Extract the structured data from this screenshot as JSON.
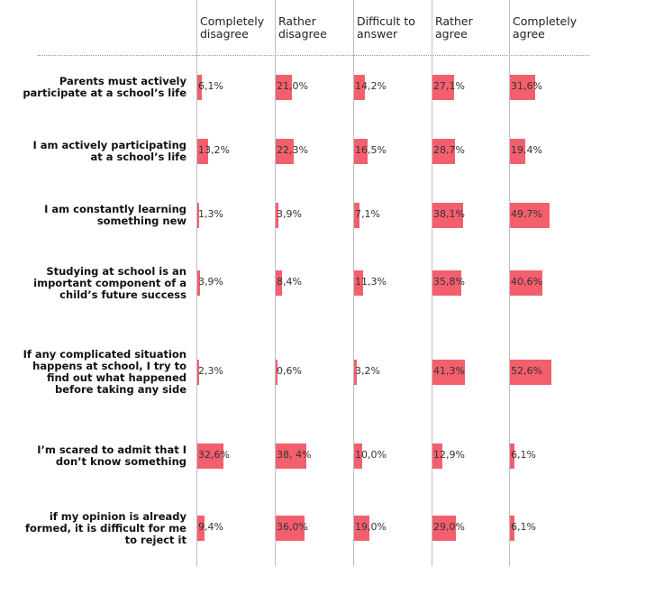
{
  "chart_data": {
    "type": "bar",
    "columns": [
      "Completely disagree",
      "Rather disagree",
      "Difficult to answer",
      "Rather agree",
      "Completely agree"
    ],
    "column_lines": [
      [
        "Completely",
        "disagree"
      ],
      [
        "Rather",
        "disagree"
      ],
      [
        "Difficult to",
        "answer"
      ],
      [
        "Rather",
        "agree"
      ],
      [
        "Completely",
        "agree"
      ]
    ],
    "rows": [
      {
        "label_lines": [
          "Parents must actively",
          "participate at a school’s life"
        ],
        "values": [
          6.1,
          21.0,
          14.2,
          27.1,
          31.6
        ],
        "value_labels": [
          "6,1%",
          "21,0%",
          "14,2%",
          "27,1%",
          "31,6%"
        ]
      },
      {
        "label_lines": [
          "I am actively participating",
          "at a school’s life"
        ],
        "values": [
          13.2,
          22.3,
          16.5,
          28.7,
          19.4
        ],
        "value_labels": [
          "13,2%",
          "22,3%",
          "16,5%",
          "28,7%",
          "19,4%"
        ]
      },
      {
        "label_lines": [
          "I am constantly learning",
          "something new"
        ],
        "values": [
          1.3,
          3.9,
          7.1,
          38.1,
          49.7
        ],
        "value_labels": [
          "1,3%",
          "3,9%",
          "7,1%",
          "38,1%",
          "49,7%"
        ]
      },
      {
        "label_lines": [
          "Studying at school is an",
          "important component of a",
          "child’s future success"
        ],
        "values": [
          3.9,
          8.4,
          11.3,
          35.8,
          40.6
        ],
        "value_labels": [
          "3,9%",
          "8,4%",
          "11,3%",
          "35,8%",
          "40,6%"
        ]
      },
      {
        "label_lines": [
          "If any complicated situation",
          "happens at school, I try to",
          "find out what happened",
          "before taking any side"
        ],
        "values": [
          2.3,
          0.6,
          3.2,
          41.3,
          52.6
        ],
        "value_labels": [
          "2,3%",
          "0,6%",
          "3,2%",
          "41,3%",
          "52,6%"
        ]
      },
      {
        "label_lines": [
          "I’m scared to admit that I",
          "don’t know something"
        ],
        "values": [
          32.6,
          38.4,
          10.0,
          12.9,
          6.1
        ],
        "value_labels": [
          "32,6%",
          "38, 4%",
          "10,0%",
          "12,9%",
          "6,1%"
        ]
      },
      {
        "label_lines": [
          "if my opinion is already",
          "formed, it is difficult for me",
          "to reject it"
        ],
        "values": [
          9.4,
          36.0,
          19.0,
          29.0,
          6.1
        ],
        "value_labels": [
          "9,4%",
          "36,0%",
          "19,0%",
          "29,0%",
          "6,1%"
        ]
      }
    ],
    "bar_color": "#f45f6e",
    "grid": true
  }
}
